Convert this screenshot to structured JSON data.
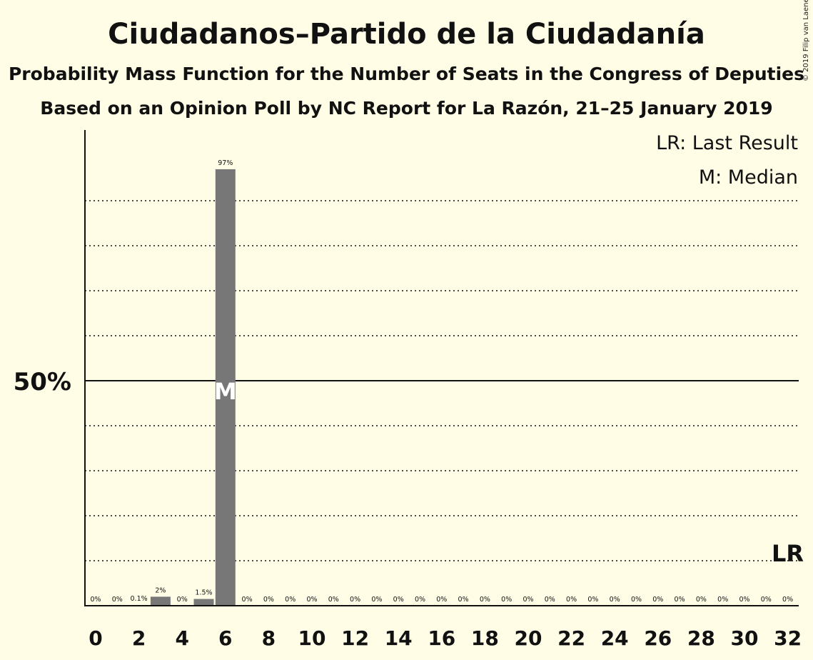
{
  "title": "Ciudadanos–Partido de la Ciudadanía",
  "subtitle": "Probability Mass Function for the Number of Seats in the Congress of Deputies",
  "subtitle2": "Based on an Opinion Poll by NC Report for La Razón, 21–25 January 2019",
  "copyright": "© 2019 Filip van Laenen",
  "colors": {
    "background": "#fffde6",
    "bar": "#777777",
    "median_marker": "#ffffff"
  },
  "chart_data": {
    "type": "bar",
    "x": [
      0,
      1,
      2,
      3,
      4,
      5,
      6,
      7,
      8,
      9,
      10,
      11,
      12,
      13,
      14,
      15,
      16,
      17,
      18,
      19,
      20,
      21,
      22,
      23,
      24,
      25,
      26,
      27,
      28,
      29,
      30,
      31,
      32
    ],
    "values": [
      0,
      0,
      0.1,
      2,
      0,
      1.5,
      97,
      0,
      0,
      0,
      0,
      0,
      0,
      0,
      0,
      0,
      0,
      0,
      0,
      0,
      0,
      0,
      0,
      0,
      0,
      0,
      0,
      0,
      0,
      0,
      0,
      0,
      0
    ],
    "data_labels": [
      "0%",
      "0%",
      "0.1%",
      "2%",
      "0%",
      "1.5%",
      "97%",
      "0%",
      "0%",
      "0%",
      "0%",
      "0%",
      "0%",
      "0%",
      "0%",
      "0%",
      "0%",
      "0%",
      "0%",
      "0%",
      "0%",
      "0%",
      "0%",
      "0%",
      "0%",
      "0%",
      "0%",
      "0%",
      "0%",
      "0%",
      "0%",
      "0%",
      "0%"
    ],
    "x_tick_labels": [
      "0",
      "2",
      "4",
      "6",
      "8",
      "10",
      "12",
      "14",
      "16",
      "18",
      "20",
      "22",
      "24",
      "26",
      "28",
      "30",
      "32"
    ],
    "x_tick_values": [
      0,
      2,
      4,
      6,
      8,
      10,
      12,
      14,
      16,
      18,
      20,
      22,
      24,
      26,
      28,
      30,
      32
    ],
    "y_tick_label": "50%",
    "y_tick_value": 50,
    "ylim": [
      0,
      105
    ],
    "gridlines": [
      10,
      20,
      30,
      40,
      60,
      70,
      80,
      90
    ],
    "median": 6,
    "median_label": "M",
    "last_result": 32,
    "last_result_label": "LR",
    "legend": [
      "LR: Last Result",
      "M: Median"
    ],
    "legend_position": "top-right",
    "xlabel": "",
    "ylabel": ""
  }
}
